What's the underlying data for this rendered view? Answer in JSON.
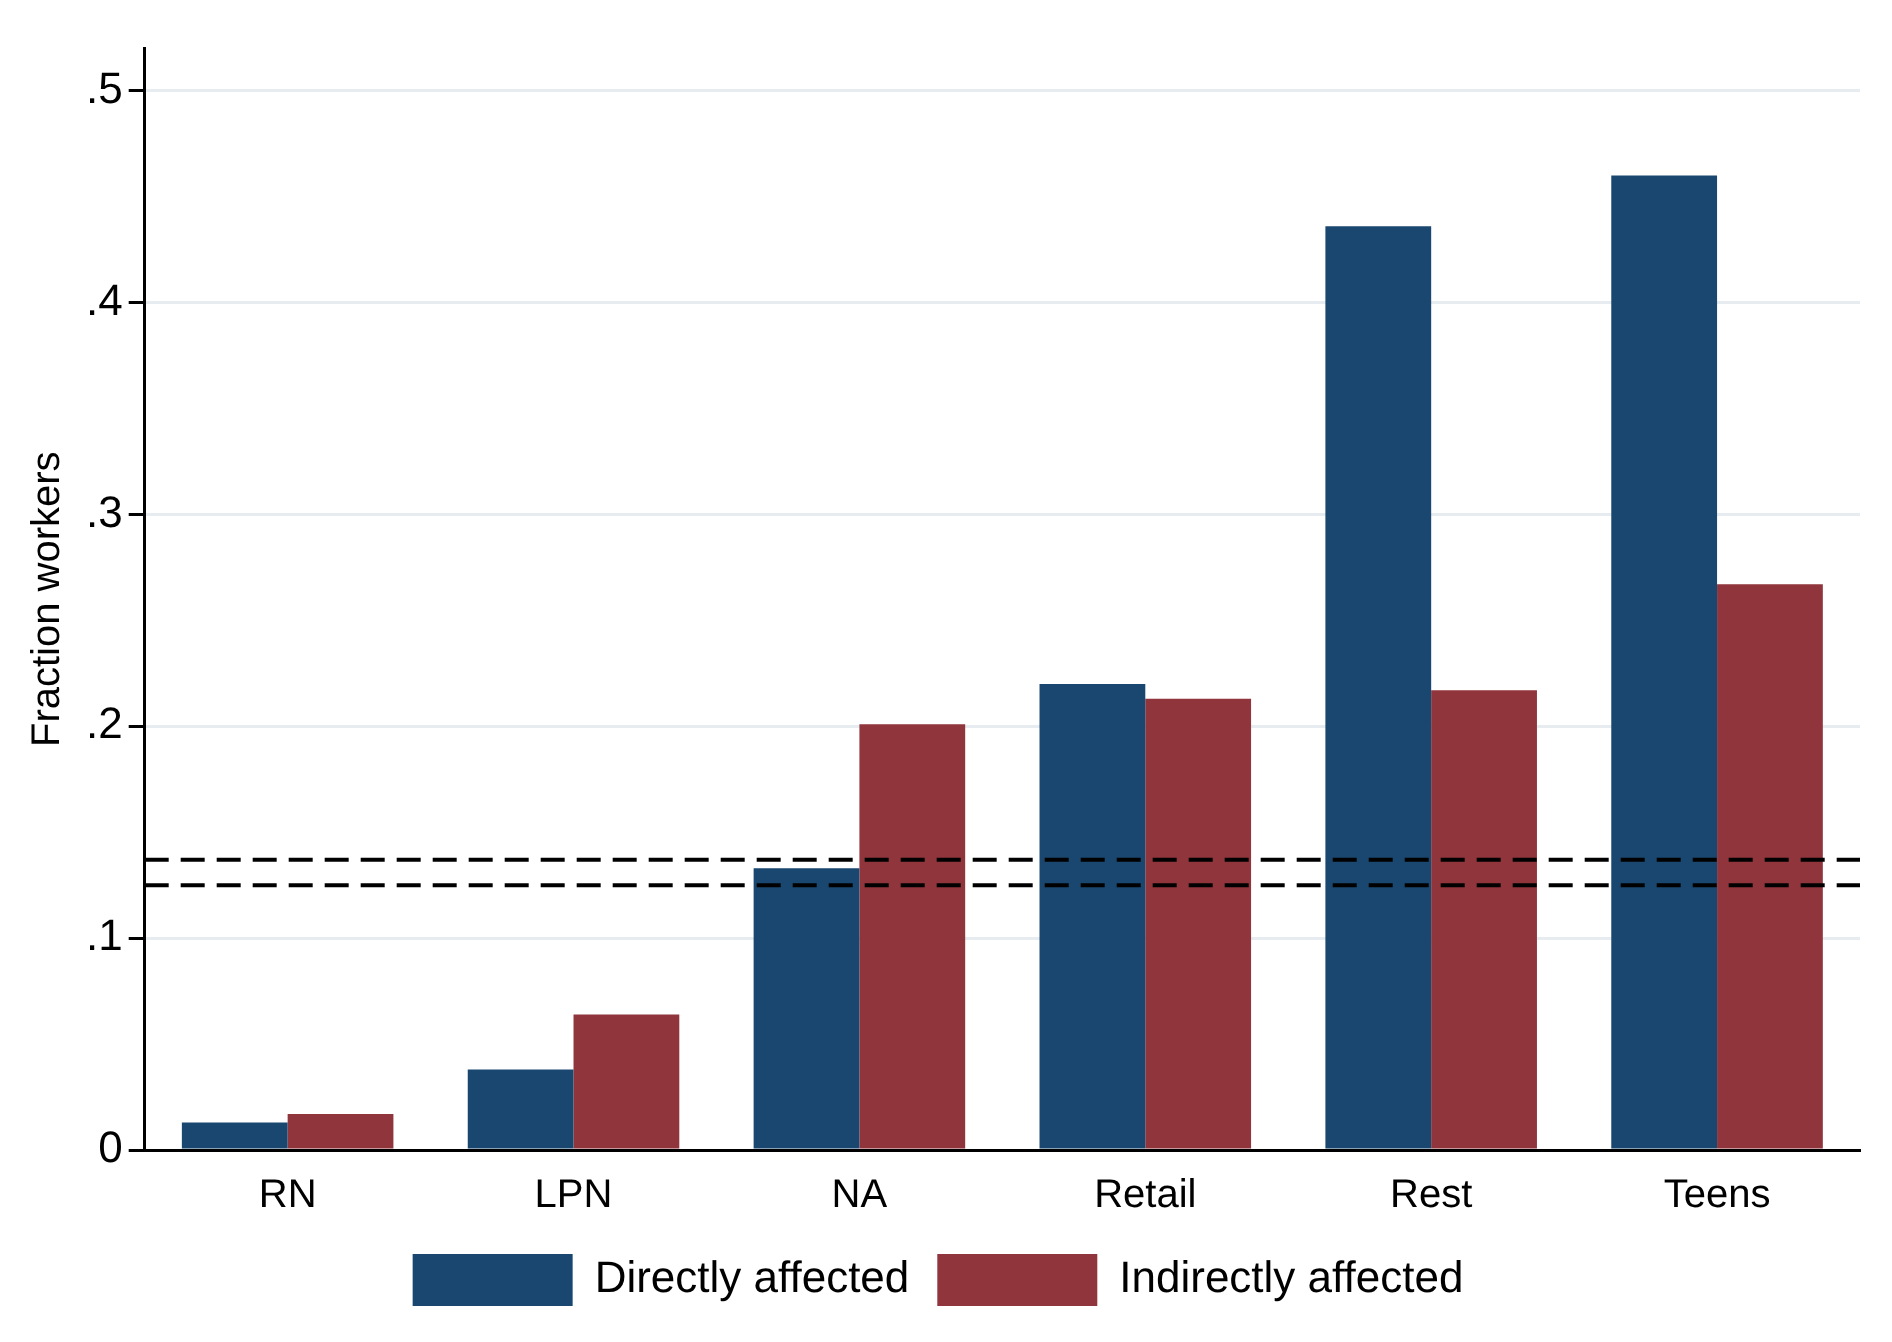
{
  "chart_data": {
    "type": "bar",
    "ylabel": "Fraction workers",
    "categories": [
      "RN",
      "LPN",
      "NA",
      "Retail",
      "Rest",
      "Teens"
    ],
    "series": [
      {
        "name": "Directly affected",
        "color": "#1a476f",
        "values": [
          0.013,
          0.038,
          0.133,
          0.22,
          0.436,
          0.46
        ]
      },
      {
        "name": "Indirectly affected",
        "color": "#90353b",
        "values": [
          0.017,
          0.064,
          0.201,
          0.213,
          0.217,
          0.267
        ]
      }
    ],
    "ylim": [
      0,
      0.52
    ],
    "yticks": [
      {
        "value": 0,
        "label": "0"
      },
      {
        "value": 0.1,
        "label": ".1"
      },
      {
        "value": 0.2,
        "label": ".2"
      },
      {
        "value": 0.3,
        "label": ".3"
      },
      {
        "value": 0.4,
        "label": ".4"
      },
      {
        "value": 0.5,
        "label": ".5"
      }
    ],
    "grid": "y",
    "legend": "bottom",
    "ref_lines": [
      {
        "axis": "y",
        "value": 0.137,
        "color": "#000000",
        "line_style": "dashed"
      },
      {
        "axis": "y",
        "value": 0.125,
        "color": "#000000",
        "line_style": "dashed"
      }
    ]
  }
}
